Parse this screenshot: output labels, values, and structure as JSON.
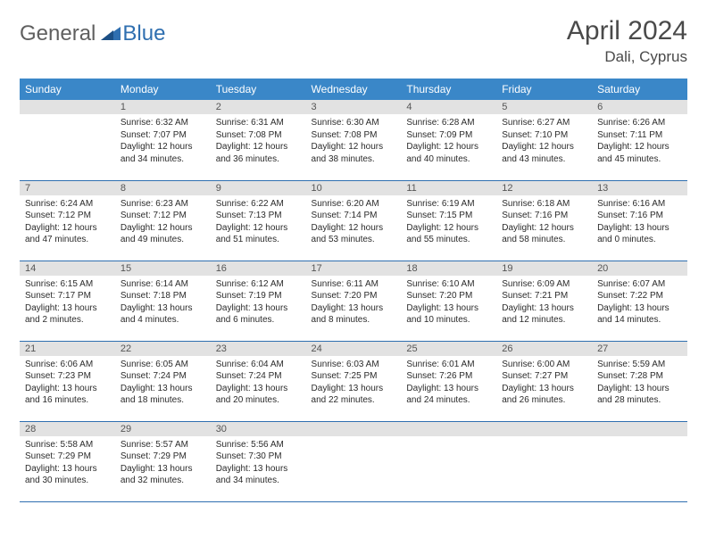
{
  "logo": {
    "general": "General",
    "blue": "Blue"
  },
  "title": "April 2024",
  "location": "Dali, Cyprus",
  "colors": {
    "header_bg": "#3a87c8",
    "header_text": "#ffffff",
    "daybar_bg": "#e2e2e2",
    "daybar_text": "#555555",
    "body_text": "#2b2b2b",
    "rule": "#2f6fb0",
    "logo_gray": "#5f5f5f",
    "logo_blue": "#2f6fb0"
  },
  "day_names": [
    "Sunday",
    "Monday",
    "Tuesday",
    "Wednesday",
    "Thursday",
    "Friday",
    "Saturday"
  ],
  "weeks": [
    [
      {
        "n": "",
        "sr": "",
        "ss": "",
        "d1": "",
        "d2": ""
      },
      {
        "n": "1",
        "sr": "Sunrise: 6:32 AM",
        "ss": "Sunset: 7:07 PM",
        "d1": "Daylight: 12 hours",
        "d2": "and 34 minutes."
      },
      {
        "n": "2",
        "sr": "Sunrise: 6:31 AM",
        "ss": "Sunset: 7:08 PM",
        "d1": "Daylight: 12 hours",
        "d2": "and 36 minutes."
      },
      {
        "n": "3",
        "sr": "Sunrise: 6:30 AM",
        "ss": "Sunset: 7:08 PM",
        "d1": "Daylight: 12 hours",
        "d2": "and 38 minutes."
      },
      {
        "n": "4",
        "sr": "Sunrise: 6:28 AM",
        "ss": "Sunset: 7:09 PM",
        "d1": "Daylight: 12 hours",
        "d2": "and 40 minutes."
      },
      {
        "n": "5",
        "sr": "Sunrise: 6:27 AM",
        "ss": "Sunset: 7:10 PM",
        "d1": "Daylight: 12 hours",
        "d2": "and 43 minutes."
      },
      {
        "n": "6",
        "sr": "Sunrise: 6:26 AM",
        "ss": "Sunset: 7:11 PM",
        "d1": "Daylight: 12 hours",
        "d2": "and 45 minutes."
      }
    ],
    [
      {
        "n": "7",
        "sr": "Sunrise: 6:24 AM",
        "ss": "Sunset: 7:12 PM",
        "d1": "Daylight: 12 hours",
        "d2": "and 47 minutes."
      },
      {
        "n": "8",
        "sr": "Sunrise: 6:23 AM",
        "ss": "Sunset: 7:12 PM",
        "d1": "Daylight: 12 hours",
        "d2": "and 49 minutes."
      },
      {
        "n": "9",
        "sr": "Sunrise: 6:22 AM",
        "ss": "Sunset: 7:13 PM",
        "d1": "Daylight: 12 hours",
        "d2": "and 51 minutes."
      },
      {
        "n": "10",
        "sr": "Sunrise: 6:20 AM",
        "ss": "Sunset: 7:14 PM",
        "d1": "Daylight: 12 hours",
        "d2": "and 53 minutes."
      },
      {
        "n": "11",
        "sr": "Sunrise: 6:19 AM",
        "ss": "Sunset: 7:15 PM",
        "d1": "Daylight: 12 hours",
        "d2": "and 55 minutes."
      },
      {
        "n": "12",
        "sr": "Sunrise: 6:18 AM",
        "ss": "Sunset: 7:16 PM",
        "d1": "Daylight: 12 hours",
        "d2": "and 58 minutes."
      },
      {
        "n": "13",
        "sr": "Sunrise: 6:16 AM",
        "ss": "Sunset: 7:16 PM",
        "d1": "Daylight: 13 hours",
        "d2": "and 0 minutes."
      }
    ],
    [
      {
        "n": "14",
        "sr": "Sunrise: 6:15 AM",
        "ss": "Sunset: 7:17 PM",
        "d1": "Daylight: 13 hours",
        "d2": "and 2 minutes."
      },
      {
        "n": "15",
        "sr": "Sunrise: 6:14 AM",
        "ss": "Sunset: 7:18 PM",
        "d1": "Daylight: 13 hours",
        "d2": "and 4 minutes."
      },
      {
        "n": "16",
        "sr": "Sunrise: 6:12 AM",
        "ss": "Sunset: 7:19 PM",
        "d1": "Daylight: 13 hours",
        "d2": "and 6 minutes."
      },
      {
        "n": "17",
        "sr": "Sunrise: 6:11 AM",
        "ss": "Sunset: 7:20 PM",
        "d1": "Daylight: 13 hours",
        "d2": "and 8 minutes."
      },
      {
        "n": "18",
        "sr": "Sunrise: 6:10 AM",
        "ss": "Sunset: 7:20 PM",
        "d1": "Daylight: 13 hours",
        "d2": "and 10 minutes."
      },
      {
        "n": "19",
        "sr": "Sunrise: 6:09 AM",
        "ss": "Sunset: 7:21 PM",
        "d1": "Daylight: 13 hours",
        "d2": "and 12 minutes."
      },
      {
        "n": "20",
        "sr": "Sunrise: 6:07 AM",
        "ss": "Sunset: 7:22 PM",
        "d1": "Daylight: 13 hours",
        "d2": "and 14 minutes."
      }
    ],
    [
      {
        "n": "21",
        "sr": "Sunrise: 6:06 AM",
        "ss": "Sunset: 7:23 PM",
        "d1": "Daylight: 13 hours",
        "d2": "and 16 minutes."
      },
      {
        "n": "22",
        "sr": "Sunrise: 6:05 AM",
        "ss": "Sunset: 7:24 PM",
        "d1": "Daylight: 13 hours",
        "d2": "and 18 minutes."
      },
      {
        "n": "23",
        "sr": "Sunrise: 6:04 AM",
        "ss": "Sunset: 7:24 PM",
        "d1": "Daylight: 13 hours",
        "d2": "and 20 minutes."
      },
      {
        "n": "24",
        "sr": "Sunrise: 6:03 AM",
        "ss": "Sunset: 7:25 PM",
        "d1": "Daylight: 13 hours",
        "d2": "and 22 minutes."
      },
      {
        "n": "25",
        "sr": "Sunrise: 6:01 AM",
        "ss": "Sunset: 7:26 PM",
        "d1": "Daylight: 13 hours",
        "d2": "and 24 minutes."
      },
      {
        "n": "26",
        "sr": "Sunrise: 6:00 AM",
        "ss": "Sunset: 7:27 PM",
        "d1": "Daylight: 13 hours",
        "d2": "and 26 minutes."
      },
      {
        "n": "27",
        "sr": "Sunrise: 5:59 AM",
        "ss": "Sunset: 7:28 PM",
        "d1": "Daylight: 13 hours",
        "d2": "and 28 minutes."
      }
    ],
    [
      {
        "n": "28",
        "sr": "Sunrise: 5:58 AM",
        "ss": "Sunset: 7:29 PM",
        "d1": "Daylight: 13 hours",
        "d2": "and 30 minutes."
      },
      {
        "n": "29",
        "sr": "Sunrise: 5:57 AM",
        "ss": "Sunset: 7:29 PM",
        "d1": "Daylight: 13 hours",
        "d2": "and 32 minutes."
      },
      {
        "n": "30",
        "sr": "Sunrise: 5:56 AM",
        "ss": "Sunset: 7:30 PM",
        "d1": "Daylight: 13 hours",
        "d2": "and 34 minutes."
      },
      {
        "n": "",
        "sr": "",
        "ss": "",
        "d1": "",
        "d2": ""
      },
      {
        "n": "",
        "sr": "",
        "ss": "",
        "d1": "",
        "d2": ""
      },
      {
        "n": "",
        "sr": "",
        "ss": "",
        "d1": "",
        "d2": ""
      },
      {
        "n": "",
        "sr": "",
        "ss": "",
        "d1": "",
        "d2": ""
      }
    ]
  ]
}
